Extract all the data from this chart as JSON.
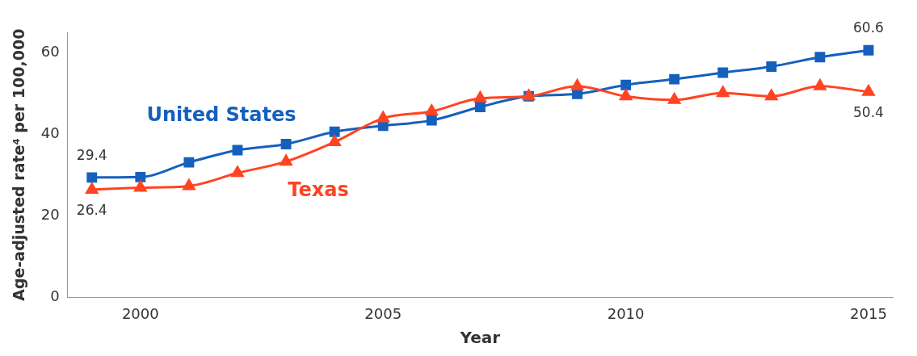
{
  "chart_data": {
    "type": "line",
    "xlabel": "Year",
    "ylabel": "Age-adjusted rate⁴ per 100,000",
    "x": [
      1999,
      2000,
      2001,
      2002,
      2003,
      2004,
      2005,
      2006,
      2007,
      2008,
      2009,
      2010,
      2011,
      2012,
      2013,
      2014,
      2015
    ],
    "xlim": [
      1998.5,
      2015.5
    ],
    "xticks": [
      2000,
      2005,
      2010,
      2015
    ],
    "ylim": [
      0,
      65
    ],
    "yticks": [
      0,
      20,
      40,
      60
    ],
    "grid": false,
    "legend": false,
    "series": [
      {
        "name": "United States",
        "color": "#1560bd",
        "marker": "square",
        "values": [
          29.4,
          29.5,
          33.1,
          36.1,
          37.6,
          40.6,
          42.1,
          43.4,
          46.7,
          49.3,
          49.9,
          52.1,
          53.5,
          55.1,
          56.6,
          58.9,
          60.6
        ],
        "value_labels": [
          "29.4",
          null,
          null,
          null,
          null,
          null,
          null,
          null,
          null,
          null,
          null,
          null,
          null,
          null,
          null,
          null,
          "60.6"
        ]
      },
      {
        "name": "Texas",
        "color": "#ff4422",
        "marker": "triangle",
        "values": [
          26.4,
          26.9,
          27.3,
          30.5,
          33.3,
          38.1,
          43.9,
          45.6,
          48.8,
          49.3,
          51.8,
          49.3,
          48.4,
          50.1,
          49.3,
          51.8,
          50.4
        ],
        "value_labels": [
          "26.4",
          null,
          null,
          null,
          null,
          null,
          null,
          null,
          null,
          null,
          null,
          null,
          null,
          null,
          null,
          null,
          "50.4"
        ]
      }
    ]
  }
}
